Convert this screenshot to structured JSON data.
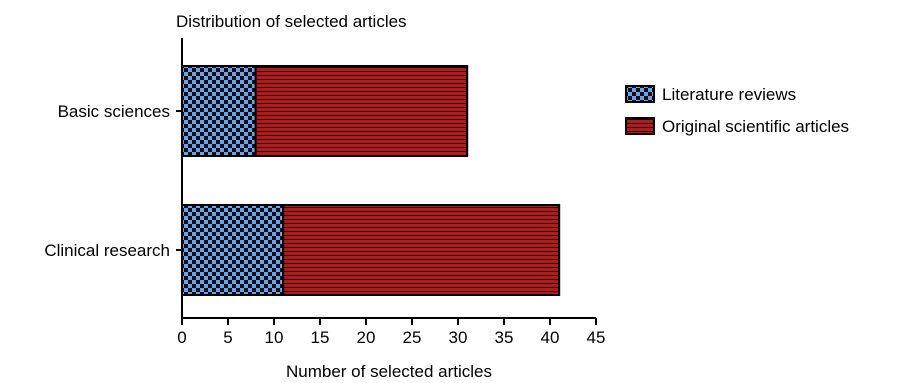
{
  "chart_data": {
    "type": "bar",
    "orientation": "horizontal",
    "stacked": true,
    "title": "Distribution of selected articles",
    "xlabel": "Number of selected articles",
    "ylabel": "",
    "xlim": [
      0,
      45
    ],
    "xticks": [
      0,
      5,
      10,
      15,
      20,
      25,
      30,
      35,
      40,
      45
    ],
    "categories": [
      "Basic sciences",
      "Clinical research"
    ],
    "series": [
      {
        "name": "Literature reviews",
        "values": [
          8,
          11
        ],
        "color": "#6699ff",
        "pattern": "checkerboard"
      },
      {
        "name": "Original scientific articles",
        "values": [
          23,
          30
        ],
        "color": "#cc0000",
        "pattern": "horizontal-stripes"
      }
    ],
    "grid": false,
    "legend": "right"
  }
}
